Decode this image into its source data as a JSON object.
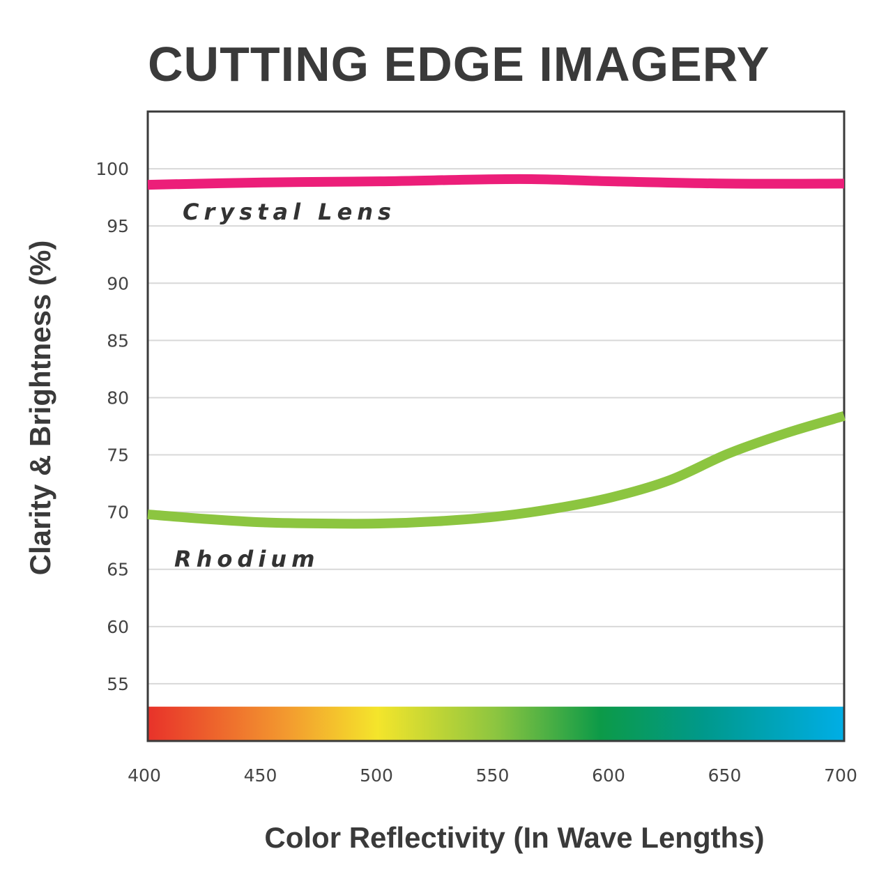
{
  "chart_data": {
    "type": "line",
    "title": "CUTTING EDGE IMAGERY",
    "xlabel": "Color Reflectivity (In Wave Lengths)",
    "ylabel": "Clarity & Brightness (%)",
    "xlim": [
      400,
      700
    ],
    "ylim": [
      50,
      105
    ],
    "x_ticks": [
      "400",
      "450",
      "500",
      "550",
      "600",
      "650",
      "700"
    ],
    "y_ticks": [
      "55",
      "60",
      "65",
      "70",
      "75",
      "80",
      "85",
      "90",
      "95",
      "100"
    ],
    "grid": "horizontal",
    "legend": "inline labels",
    "spectrum_band": {
      "range": [
        50,
        53
      ],
      "colors": [
        "#e8322a",
        "#f39a2f",
        "#f4e52b",
        "#8cc540",
        "#0c9a48",
        "#00998c",
        "#00aee6"
      ]
    },
    "series": [
      {
        "name": "Crystal Lens",
        "color": "#ec1e79",
        "x": [
          400,
          450,
          500,
          560,
          600,
          650,
          700
        ],
        "y": [
          98.6,
          98.8,
          98.9,
          99.1,
          98.9,
          98.7,
          98.7
        ]
      },
      {
        "name": "Rhodium",
        "color": "#8cc540",
        "x": [
          400,
          425,
          450,
          475,
          500,
          525,
          550,
          575,
          600,
          625,
          650,
          675,
          700
        ],
        "y": [
          69.8,
          69.4,
          69.1,
          69.0,
          69.0,
          69.2,
          69.6,
          70.3,
          71.3,
          72.8,
          75.1,
          76.9,
          78.4
        ]
      }
    ]
  }
}
